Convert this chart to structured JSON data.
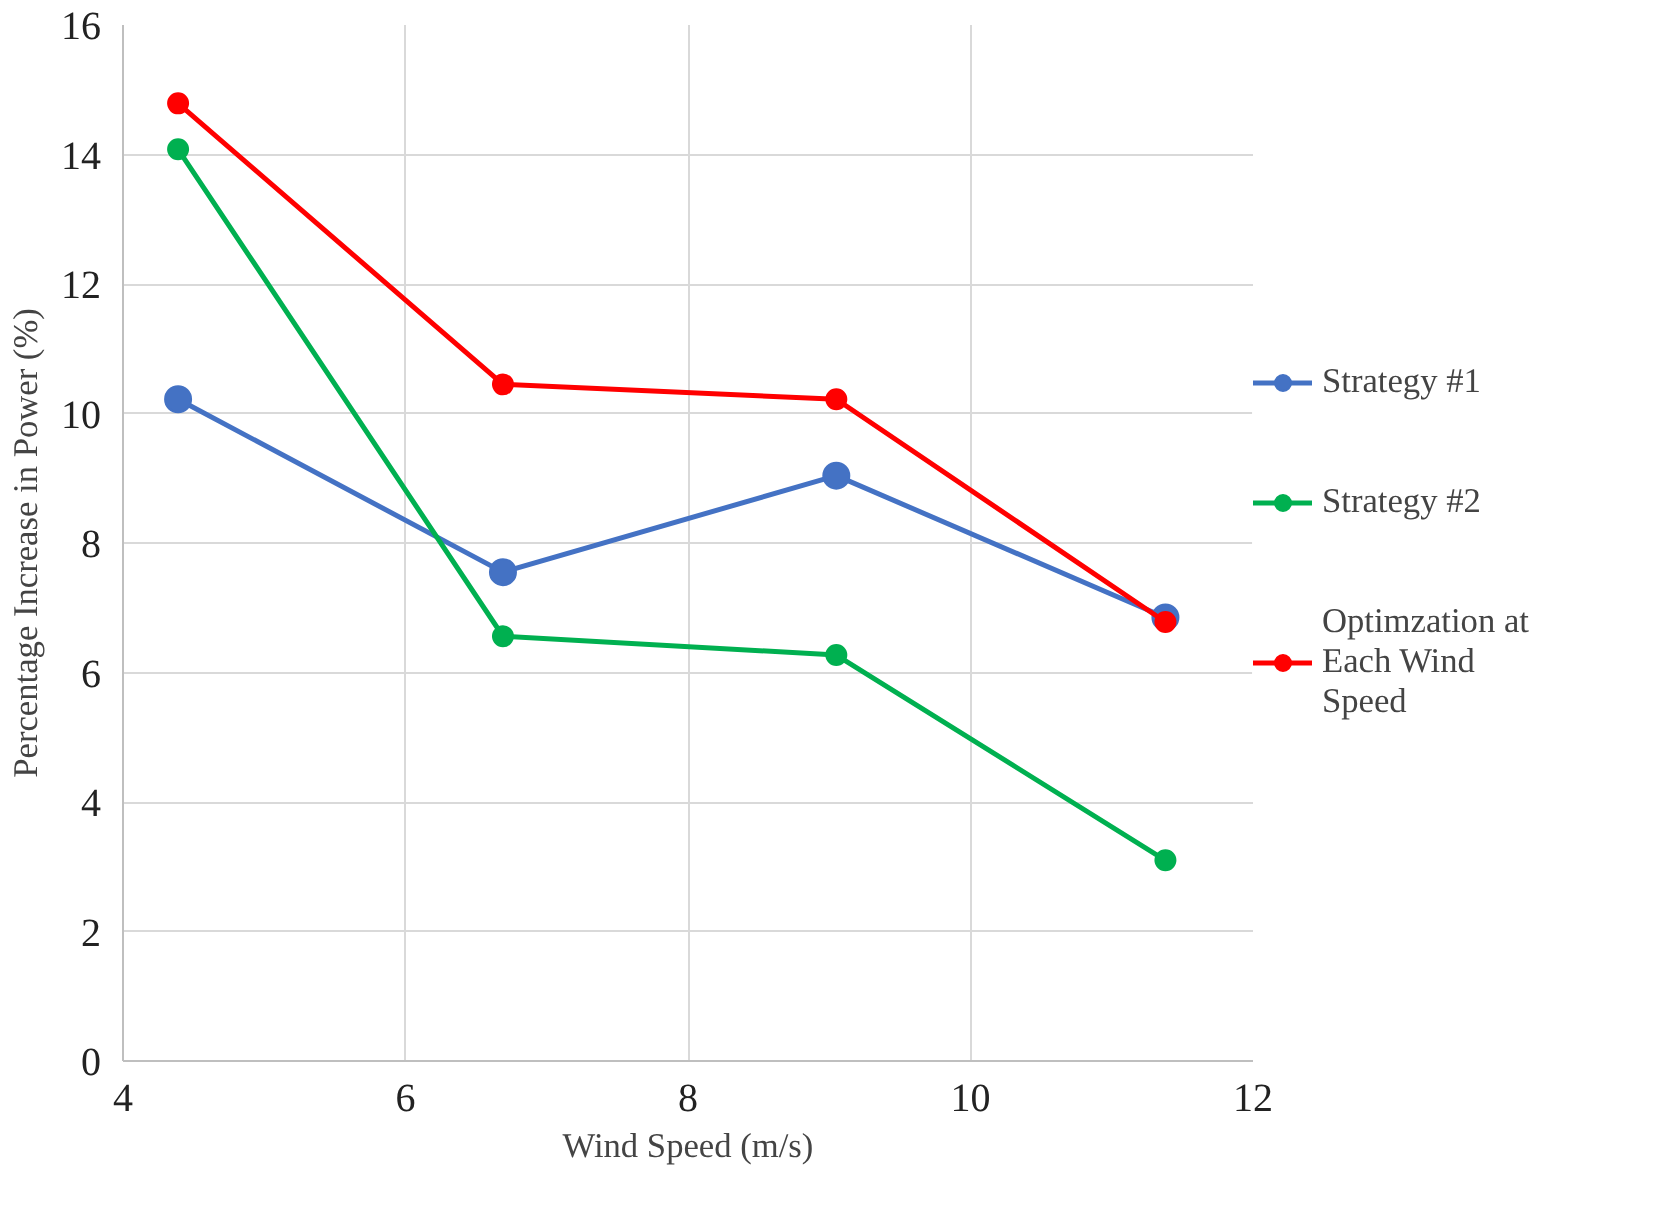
{
  "chart_data": {
    "type": "line",
    "xlabel": "Wind Speed (m/s)",
    "ylabel": "Percentage Increase in Power (%)",
    "x": [
      4.39,
      6.69,
      9.05,
      11.38
    ],
    "series": [
      {
        "name": "Strategy #1",
        "color": "#4472c4",
        "values": [
          10.22,
          7.55,
          9.04,
          6.85
        ]
      },
      {
        "name": "Strategy #2",
        "color": "#00b050",
        "values": [
          14.08,
          6.56,
          6.27,
          3.1
        ]
      },
      {
        "name": "Optimzation at Each Wind Speed",
        "color": "#ff0000",
        "values": [
          14.79,
          10.45,
          10.22,
          6.78
        ]
      }
    ],
    "xlim": [
      4,
      12
    ],
    "xticks": [
      4,
      6,
      8,
      10,
      12
    ],
    "ylim": [
      0,
      16
    ],
    "yticks": [
      0,
      2,
      4,
      6,
      8,
      10,
      12,
      14,
      16
    ],
    "grid": true,
    "legend": "right",
    "marker": "circle",
    "line_style": "solid"
  }
}
